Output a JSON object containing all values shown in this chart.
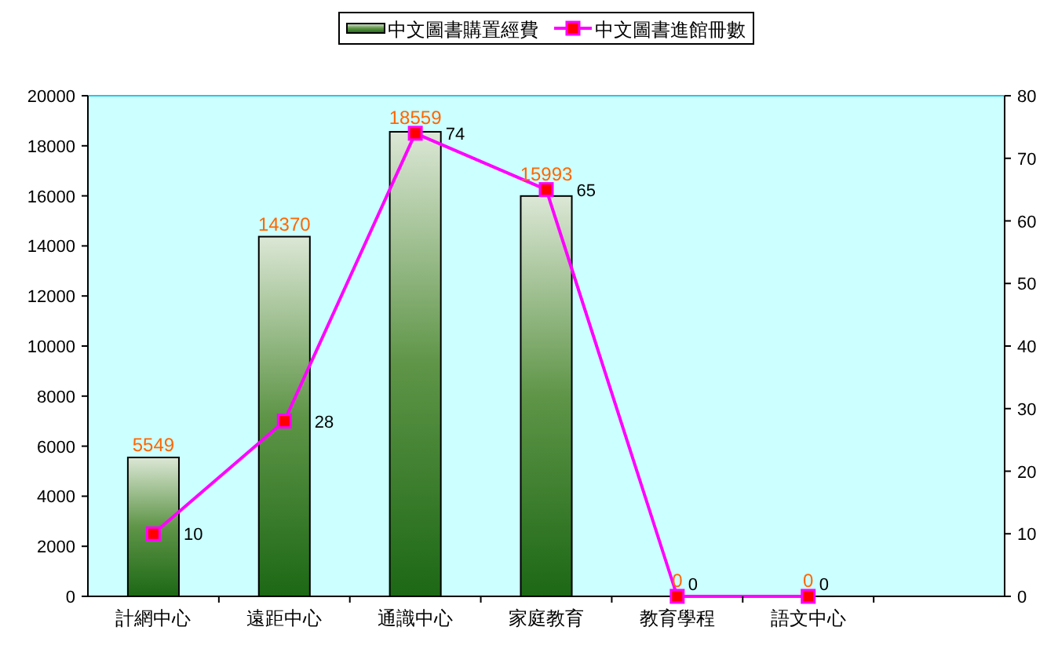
{
  "chart_data": {
    "type": "bar",
    "categories": [
      "計網中心",
      "遠距中心",
      "通識中心",
      "家庭教育",
      "教育學程",
      "語文中心",
      null
    ],
    "series": [
      {
        "name": "中文圖書購置經費",
        "type": "bar",
        "color": "#5f9548",
        "values": [
          5549,
          14370,
          18559,
          15993,
          0,
          0,
          null
        ]
      },
      {
        "name": "中文圖書進館冊數",
        "type": "line",
        "axis": "y2",
        "color": "#ff00ff",
        "marker": "square",
        "values": [
          10,
          28,
          74,
          65,
          0,
          0,
          null
        ]
      }
    ],
    "ylim": [
      0,
      20000
    ],
    "yticks": [
      0,
      2000,
      4000,
      6000,
      8000,
      10000,
      12000,
      14000,
      16000,
      18000,
      20000
    ],
    "y2lim": [
      0,
      80
    ],
    "y2ticks": [
      0,
      10,
      20,
      30,
      40,
      50,
      60,
      70,
      80
    ],
    "data_labels": true,
    "legend": "top"
  }
}
